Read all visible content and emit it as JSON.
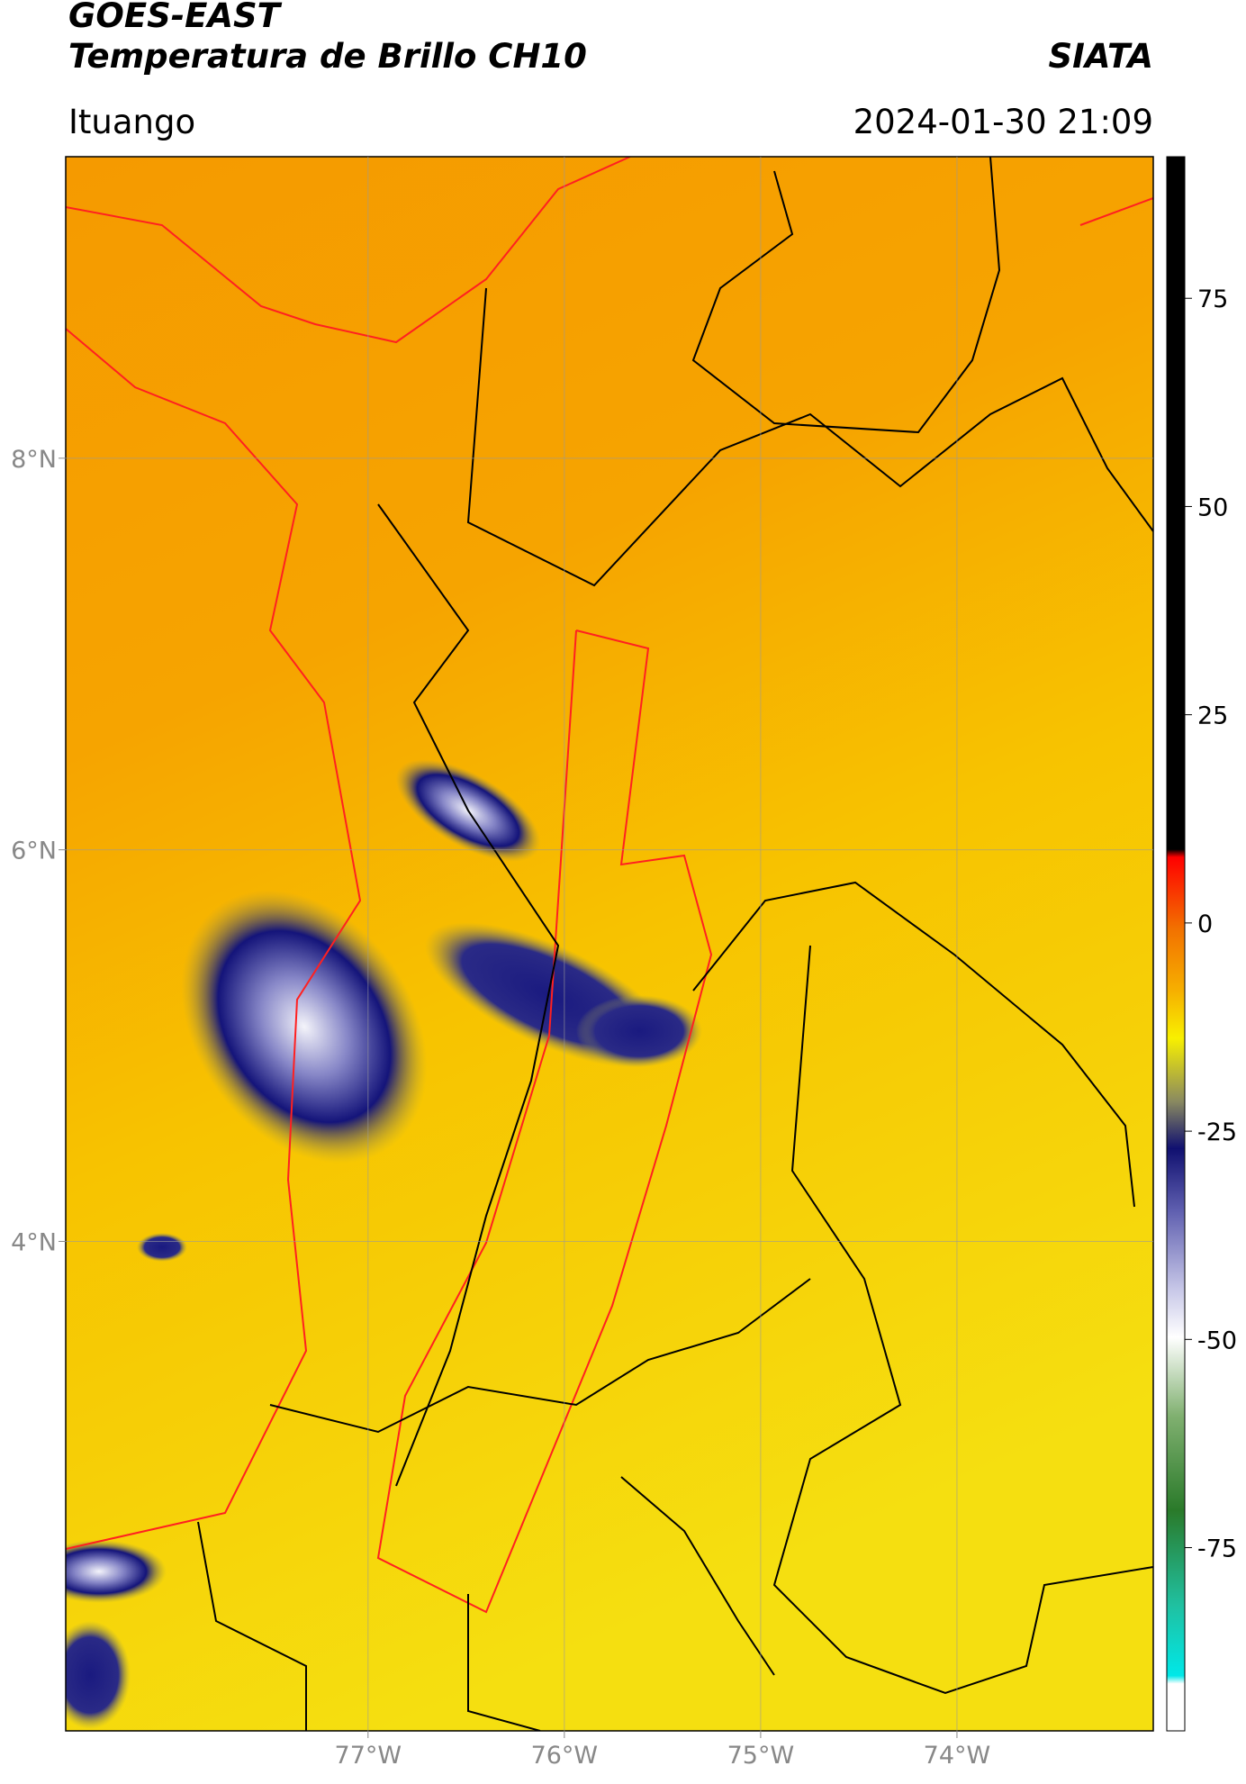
{
  "header": {
    "title": "GOES-EAST",
    "subtitle": "Temperatura de Brillo CH10",
    "source": "SIATA",
    "location": "Ituango",
    "datetime": "2024-01-30 21:09"
  },
  "chart_data": {
    "type": "map",
    "xlim": [
      -78.54,
      -73.0
    ],
    "ylim": [
      1.5,
      9.54
    ],
    "xticks": [
      {
        "value": -77,
        "label": "77°W"
      },
      {
        "value": -76,
        "label": "76°W"
      },
      {
        "value": -75,
        "label": "75°W"
      },
      {
        "value": -74,
        "label": "74°W"
      }
    ],
    "yticks": [
      {
        "value": 8,
        "label": "8°N"
      },
      {
        "value": 6,
        "label": "6°N"
      },
      {
        "value": 4,
        "label": "4°N"
      }
    ],
    "grid": true,
    "colorbar": {
      "clim": [
        -97,
        92
      ],
      "ticks": [
        75,
        50,
        25,
        0,
        -25,
        -50,
        -75
      ]
    }
  }
}
